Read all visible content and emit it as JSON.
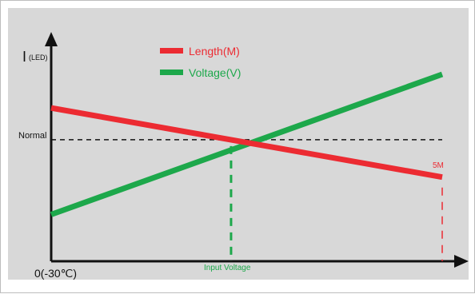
{
  "chart_data": {
    "type": "line",
    "title": "",
    "xlabel": "",
    "ylabel_main": "I",
    "ylabel_sub": "(LED)",
    "origin_label": "0(-30℃)",
    "x_marker_labels": [
      "Input Voltage",
      "5M"
    ],
    "y_marker_label": "Normal",
    "legend_position": "top-center",
    "grid": false,
    "x": [
      0,
      1
    ],
    "series": [
      {
        "name": "Length(M)",
        "color": "#ec2b32",
        "values": [
          0.82,
          0.45
        ]
      },
      {
        "name": "Voltage(V)",
        "color": "#1da84b",
        "values": [
          0.25,
          1.0
        ]
      }
    ],
    "normal_y": 0.65,
    "input_voltage_x": 0.46,
    "length_5m_x": 1.0,
    "colors": {
      "background": "#d8d8d8",
      "axis": "#111111",
      "normal_line": "#111111",
      "length": "#ec2b32",
      "voltage": "#1da84b"
    }
  }
}
